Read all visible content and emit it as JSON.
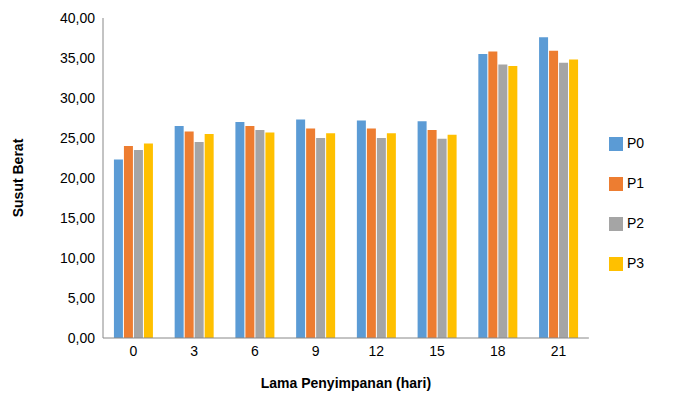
{
  "chart_data": {
    "type": "bar",
    "x_label": "Lama Penyimpanan (hari)",
    "y_label": "Susut Berat",
    "categories": [
      "0",
      "3",
      "6",
      "9",
      "12",
      "15",
      "18",
      "21"
    ],
    "series": [
      {
        "name": "P0",
        "color": "#5b9bd5",
        "values": [
          22.3,
          26.5,
          27.0,
          27.3,
          27.2,
          27.1,
          35.5,
          37.6
        ]
      },
      {
        "name": "P1",
        "color": "#ed7d31",
        "values": [
          24.0,
          25.8,
          26.5,
          26.2,
          26.2,
          26.0,
          35.8,
          35.9
        ]
      },
      {
        "name": "P2",
        "color": "#a5a5a5",
        "values": [
          23.5,
          24.5,
          26.0,
          25.0,
          25.0,
          24.9,
          34.2,
          34.4
        ]
      },
      {
        "name": "P3",
        "color": "#ffc000",
        "values": [
          24.3,
          25.5,
          25.7,
          25.6,
          25.6,
          25.4,
          34.0,
          34.8
        ]
      }
    ],
    "ylim": [
      0,
      40
    ],
    "yticks": [
      {
        "value": 0,
        "label": "0,00"
      },
      {
        "value": 5,
        "label": "5,00"
      },
      {
        "value": 10,
        "label": "10,00"
      },
      {
        "value": 15,
        "label": "15,00"
      },
      {
        "value": 20,
        "label": "20,00"
      },
      {
        "value": 25,
        "label": "25,00"
      },
      {
        "value": 30,
        "label": "30,00"
      },
      {
        "value": 35,
        "label": "35,00"
      },
      {
        "value": 40,
        "label": "40,00"
      }
    ],
    "grid": false,
    "legend": "right"
  }
}
